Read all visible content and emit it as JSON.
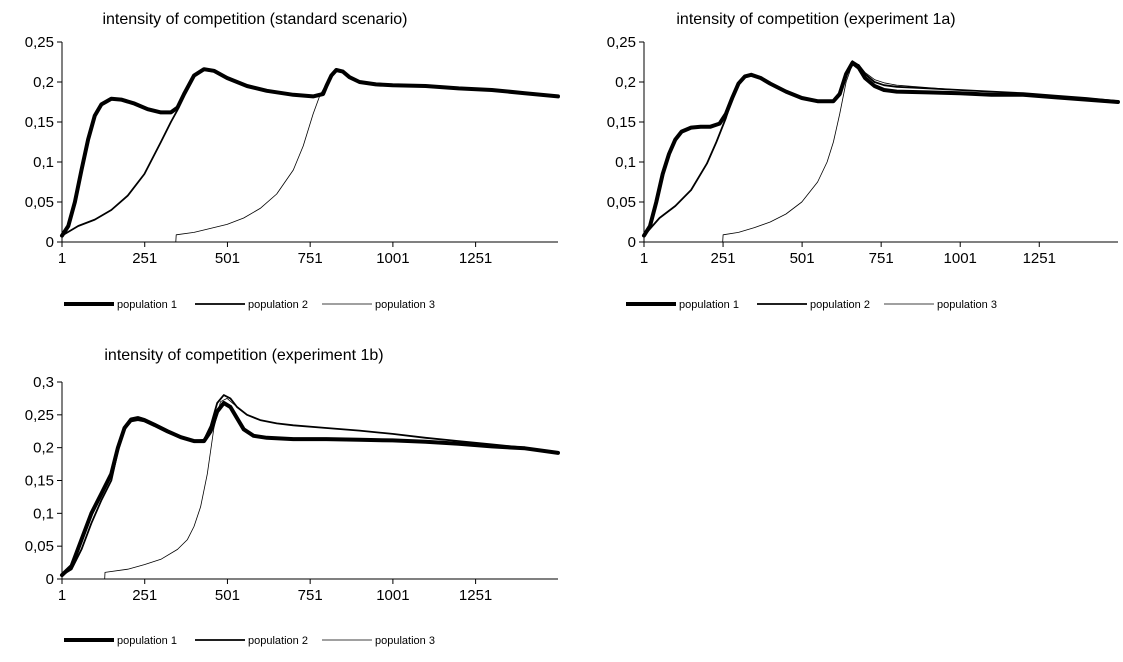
{
  "chart_data": [
    {
      "type": "line",
      "title": "intensity of competition  (standard scenario)",
      "xlabel": "",
      "ylabel": "",
      "xlim": [
        1,
        1500
      ],
      "ylim": [
        0,
        0.25
      ],
      "x_ticks": [
        1,
        251,
        501,
        751,
        1001,
        1251
      ],
      "y_ticks": [
        "0",
        "0,05",
        "0,1",
        "0,15",
        "0,2",
        "0,25"
      ],
      "y_tick_values": [
        0,
        0.05,
        0.1,
        0.15,
        0.2,
        0.25
      ],
      "grid": false,
      "legend": "bottom",
      "series": [
        {
          "name": "population 1",
          "stroke": 4,
          "x": [
            1,
            20,
            40,
            60,
            80,
            100,
            120,
            150,
            180,
            220,
            260,
            300,
            330,
            350,
            370,
            400,
            430,
            460,
            500,
            560,
            620,
            700,
            760,
            790,
            800,
            815,
            830,
            850,
            870,
            900,
            950,
            1000,
            1100,
            1200,
            1300,
            1400,
            1500
          ],
          "y": [
            0.008,
            0.02,
            0.05,
            0.09,
            0.128,
            0.158,
            0.172,
            0.179,
            0.178,
            0.173,
            0.166,
            0.162,
            0.162,
            0.168,
            0.185,
            0.208,
            0.216,
            0.214,
            0.205,
            0.195,
            0.189,
            0.184,
            0.182,
            0.185,
            0.195,
            0.208,
            0.215,
            0.213,
            0.206,
            0.2,
            0.197,
            0.196,
            0.195,
            0.192,
            0.19,
            0.186,
            0.182
          ]
        },
        {
          "name": "population 2",
          "stroke": 1.8,
          "x": [
            1,
            50,
            100,
            150,
            200,
            250,
            300,
            330,
            350,
            370,
            400,
            430,
            460,
            500,
            560,
            620,
            700,
            760,
            790,
            800,
            815,
            830,
            850,
            870,
            900,
            950,
            1000,
            1100,
            1200,
            1300,
            1400,
            1500
          ],
          "y": [
            0.008,
            0.02,
            0.028,
            0.04,
            0.058,
            0.085,
            0.125,
            0.15,
            0.165,
            0.185,
            0.207,
            0.215,
            0.213,
            0.204,
            0.195,
            0.189,
            0.184,
            0.182,
            0.185,
            0.195,
            0.208,
            0.215,
            0.213,
            0.206,
            0.2,
            0.197,
            0.196,
            0.195,
            0.192,
            0.19,
            0.186,
            0.182
          ]
        },
        {
          "name": "population 3",
          "stroke": 0.8,
          "x": [
            345,
            346,
            400,
            450,
            500,
            550,
            600,
            650,
            700,
            730,
            760,
            780,
            800,
            815,
            830,
            850,
            870,
            900,
            950,
            1000,
            1100,
            1200,
            1300,
            1400,
            1500
          ],
          "y": [
            0,
            0.009,
            0.012,
            0.017,
            0.022,
            0.03,
            0.042,
            0.06,
            0.09,
            0.12,
            0.16,
            0.183,
            0.198,
            0.21,
            0.215,
            0.213,
            0.206,
            0.2,
            0.197,
            0.196,
            0.195,
            0.192,
            0.19,
            0.186,
            0.182
          ]
        }
      ]
    },
    {
      "type": "line",
      "title": "intensity of competition (experiment 1a)",
      "xlabel": "",
      "ylabel": "",
      "xlim": [
        1,
        1500
      ],
      "ylim": [
        0,
        0.25
      ],
      "x_ticks": [
        1,
        251,
        501,
        751,
        1001,
        1251
      ],
      "y_ticks": [
        "0",
        "0,05",
        "0,1",
        "0,15",
        "0,2",
        "0,25"
      ],
      "y_tick_values": [
        0,
        0.05,
        0.1,
        0.15,
        0.2,
        0.25
      ],
      "grid": false,
      "legend": "bottom",
      "series": [
        {
          "name": "population 1",
          "stroke": 4,
          "x": [
            1,
            20,
            40,
            60,
            80,
            100,
            120,
            150,
            180,
            210,
            240,
            260,
            280,
            300,
            320,
            340,
            370,
            400,
            450,
            500,
            550,
            600,
            620,
            640,
            660,
            680,
            700,
            730,
            760,
            800,
            900,
            1000,
            1100,
            1200,
            1300,
            1400,
            1500
          ],
          "y": [
            0.008,
            0.02,
            0.05,
            0.085,
            0.11,
            0.128,
            0.138,
            0.143,
            0.144,
            0.144,
            0.148,
            0.16,
            0.18,
            0.198,
            0.207,
            0.209,
            0.205,
            0.198,
            0.188,
            0.18,
            0.176,
            0.176,
            0.185,
            0.21,
            0.224,
            0.218,
            0.205,
            0.195,
            0.19,
            0.188,
            0.187,
            0.186,
            0.184,
            0.184,
            0.181,
            0.178,
            0.175
          ]
        },
        {
          "name": "population 2",
          "stroke": 1.8,
          "x": [
            1,
            50,
            100,
            150,
            200,
            230,
            260,
            280,
            300,
            320,
            340,
            370,
            400,
            450,
            500,
            550,
            600,
            620,
            640,
            660,
            680,
            700,
            730,
            760,
            800,
            900,
            1000,
            1100,
            1200,
            1300,
            1400,
            1500
          ],
          "y": [
            0.008,
            0.03,
            0.045,
            0.065,
            0.098,
            0.125,
            0.155,
            0.18,
            0.198,
            0.207,
            0.209,
            0.205,
            0.198,
            0.188,
            0.18,
            0.176,
            0.176,
            0.185,
            0.21,
            0.226,
            0.221,
            0.21,
            0.2,
            0.196,
            0.194,
            0.192,
            0.19,
            0.188,
            0.186,
            0.183,
            0.18,
            0.176
          ]
        },
        {
          "name": "population 3",
          "stroke": 0.8,
          "x": [
            250,
            251,
            300,
            350,
            400,
            450,
            500,
            550,
            580,
            600,
            620,
            640,
            660,
            680,
            700,
            730,
            760,
            800,
            900,
            1000,
            1100,
            1200,
            1300,
            1400,
            1500
          ],
          "y": [
            0,
            0.009,
            0.012,
            0.018,
            0.025,
            0.035,
            0.05,
            0.075,
            0.1,
            0.125,
            0.16,
            0.2,
            0.222,
            0.222,
            0.212,
            0.203,
            0.199,
            0.196,
            0.193,
            0.19,
            0.188,
            0.186,
            0.183,
            0.18,
            0.176
          ]
        }
      ]
    },
    {
      "type": "line",
      "title": "intensity of competition (experiment 1b)",
      "xlabel": "",
      "ylabel": "",
      "xlim": [
        1,
        1500
      ],
      "ylim": [
        0,
        0.3
      ],
      "x_ticks": [
        1,
        251,
        501,
        751,
        1001,
        1251
      ],
      "y_ticks": [
        "0",
        "0,05",
        "0,1",
        "0,15",
        "0,2",
        "0,25",
        "0,3"
      ],
      "y_tick_values": [
        0,
        0.05,
        0.1,
        0.15,
        0.2,
        0.25,
        0.3
      ],
      "grid": false,
      "legend": "bottom",
      "series": [
        {
          "name": "population 1",
          "stroke": 4,
          "x": [
            1,
            30,
            60,
            90,
            120,
            150,
            170,
            190,
            210,
            230,
            250,
            280,
            320,
            360,
            400,
            430,
            450,
            470,
            490,
            510,
            530,
            550,
            580,
            620,
            700,
            800,
            900,
            1000,
            1100,
            1200,
            1300,
            1400,
            1500
          ],
          "y": [
            0.006,
            0.02,
            0.06,
            0.1,
            0.13,
            0.16,
            0.2,
            0.23,
            0.243,
            0.245,
            0.242,
            0.235,
            0.225,
            0.216,
            0.21,
            0.21,
            0.225,
            0.255,
            0.268,
            0.262,
            0.245,
            0.228,
            0.218,
            0.215,
            0.213,
            0.213,
            0.212,
            0.211,
            0.209,
            0.206,
            0.202,
            0.199,
            0.192
          ]
        },
        {
          "name": "population 2",
          "stroke": 1.8,
          "x": [
            1,
            30,
            60,
            90,
            120,
            150,
            170,
            190,
            210,
            230,
            250,
            280,
            320,
            360,
            400,
            430,
            450,
            470,
            490,
            510,
            530,
            560,
            600,
            650,
            700,
            800,
            900,
            1000,
            1100,
            1200,
            1300,
            1400,
            1500
          ],
          "y": [
            0.006,
            0.015,
            0.045,
            0.085,
            0.12,
            0.15,
            0.195,
            0.228,
            0.24,
            0.242,
            0.24,
            0.233,
            0.223,
            0.215,
            0.21,
            0.212,
            0.233,
            0.268,
            0.28,
            0.275,
            0.262,
            0.25,
            0.242,
            0.237,
            0.234,
            0.23,
            0.226,
            0.221,
            0.215,
            0.21,
            0.205,
            0.2,
            0.192
          ]
        },
        {
          "name": "population 3",
          "stroke": 0.8,
          "x": [
            130,
            131,
            200,
            250,
            300,
            350,
            380,
            400,
            420,
            440,
            460,
            480,
            500,
            530,
            560,
            600,
            650,
            700,
            800,
            900,
            1000,
            1100,
            1200,
            1300,
            1400,
            1500
          ],
          "y": [
            0,
            0.01,
            0.015,
            0.022,
            0.03,
            0.045,
            0.06,
            0.08,
            0.11,
            0.16,
            0.23,
            0.27,
            0.275,
            0.262,
            0.25,
            0.242,
            0.237,
            0.234,
            0.23,
            0.226,
            0.221,
            0.215,
            0.21,
            0.205,
            0.2,
            0.192
          ]
        }
      ]
    }
  ]
}
